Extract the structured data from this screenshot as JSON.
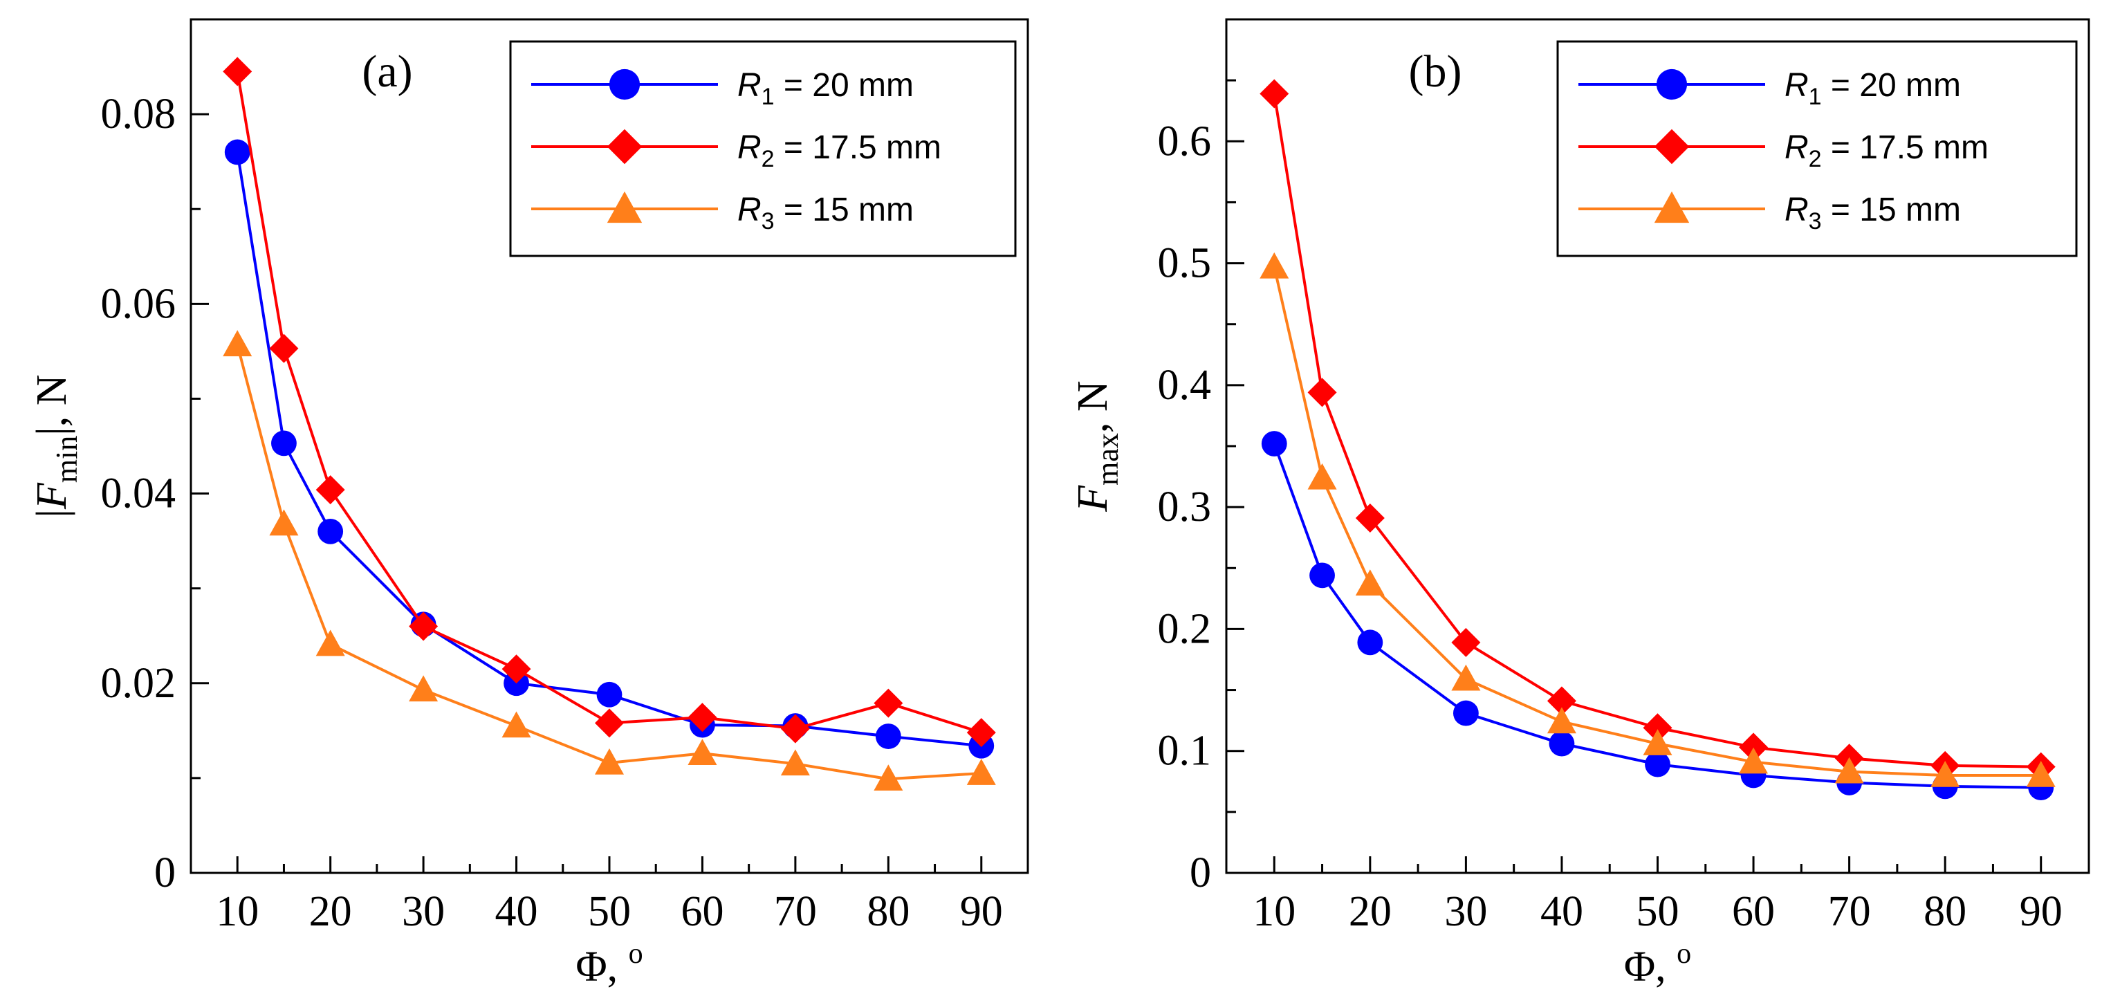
{
  "chart_data": [
    {
      "type": "line",
      "panel_label": "(a)",
      "x": [
        10,
        15,
        20,
        30,
        40,
        50,
        60,
        70,
        80,
        90
      ],
      "xlim": [
        5,
        95
      ],
      "ylim": [
        0,
        0.09
      ],
      "xticks": [
        "10",
        "20",
        "30",
        "40",
        "50",
        "60",
        "70",
        "80",
        "90"
      ],
      "xtick_values": [
        10,
        20,
        30,
        40,
        50,
        60,
        70,
        80,
        90
      ],
      "yticks": [
        "0",
        "0.02",
        "0.04",
        "0.06",
        "0.08"
      ],
      "ytick_values": [
        0,
        0.02,
        0.04,
        0.06,
        0.08
      ],
      "xlabel": {
        "symbol": "Φ",
        "rest": ", ",
        "sup": "o"
      },
      "ylabel": {
        "pre": "|",
        "symbol": "F",
        "sub": "min",
        "post": "|, N"
      },
      "legend_position": "top-right",
      "series": [
        {
          "name": "R1 = 20 mm",
          "legend_symbol": "R",
          "legend_sub": "1",
          "legend_rest": " = 20 mm",
          "color": "#0000ff",
          "marker": "circle",
          "values": [
            0.076,
            0.0453,
            0.036,
            0.0262,
            0.02,
            0.0188,
            0.0156,
            0.0155,
            0.0144,
            0.0134
          ]
        },
        {
          "name": "R2 = 17.5 mm",
          "legend_symbol": "R",
          "legend_sub": "2",
          "legend_rest": " = 17.5 mm",
          "color": "#ff0000",
          "marker": "diamond",
          "values": [
            0.0845,
            0.0553,
            0.0404,
            0.026,
            0.0215,
            0.0158,
            0.0164,
            0.0152,
            0.0179,
            0.0148
          ]
        },
        {
          "name": "R3 = 15 mm",
          "legend_symbol": "R",
          "legend_sub": "3",
          "legend_rest": " = 15 mm",
          "color": "#ff7f1a",
          "marker": "triangle",
          "values": [
            0.0557,
            0.0368,
            0.0241,
            0.0193,
            0.0155,
            0.0116,
            0.0126,
            0.0115,
            0.0099,
            0.0105
          ]
        }
      ]
    },
    {
      "type": "line",
      "panel_label": "(b)",
      "x": [
        10,
        15,
        20,
        30,
        40,
        50,
        60,
        70,
        80,
        90
      ],
      "xlim": [
        5,
        95
      ],
      "ylim": [
        0,
        0.7
      ],
      "xticks": [
        "10",
        "20",
        "30",
        "40",
        "50",
        "60",
        "70",
        "80",
        "90"
      ],
      "xtick_values": [
        10,
        20,
        30,
        40,
        50,
        60,
        70,
        80,
        90
      ],
      "yticks": [
        "0",
        "0.1",
        "0.2",
        "0.3",
        "0.4",
        "0.5",
        "0.6"
      ],
      "ytick_values": [
        0,
        0.1,
        0.2,
        0.3,
        0.4,
        0.5,
        0.6
      ],
      "xlabel": {
        "symbol": "Φ",
        "rest": ", ",
        "sup": "o"
      },
      "ylabel": {
        "pre": "",
        "symbol": "F",
        "sub": "max",
        "post": ", N"
      },
      "legend_position": "top-right",
      "series": [
        {
          "name": "R1 = 20 mm",
          "legend_symbol": "R",
          "legend_sub": "1",
          "legend_rest": " = 20 mm",
          "color": "#0000ff",
          "marker": "circle",
          "values": [
            0.352,
            0.244,
            0.189,
            0.131,
            0.106,
            0.089,
            0.08,
            0.074,
            0.071,
            0.07
          ]
        },
        {
          "name": "R2 = 17.5 mm",
          "legend_symbol": "R",
          "legend_sub": "2",
          "legend_rest": " = 17.5 mm",
          "color": "#ff0000",
          "marker": "diamond",
          "values": [
            0.639,
            0.394,
            0.291,
            0.189,
            0.141,
            0.119,
            0.103,
            0.094,
            0.088,
            0.087
          ]
        },
        {
          "name": "R3 = 15 mm",
          "legend_symbol": "R",
          "legend_sub": "3",
          "legend_rest": " = 15 mm",
          "color": "#ff7f1a",
          "marker": "triangle",
          "values": [
            0.497,
            0.324,
            0.237,
            0.159,
            0.124,
            0.106,
            0.091,
            0.083,
            0.08,
            0.08
          ]
        }
      ]
    }
  ]
}
